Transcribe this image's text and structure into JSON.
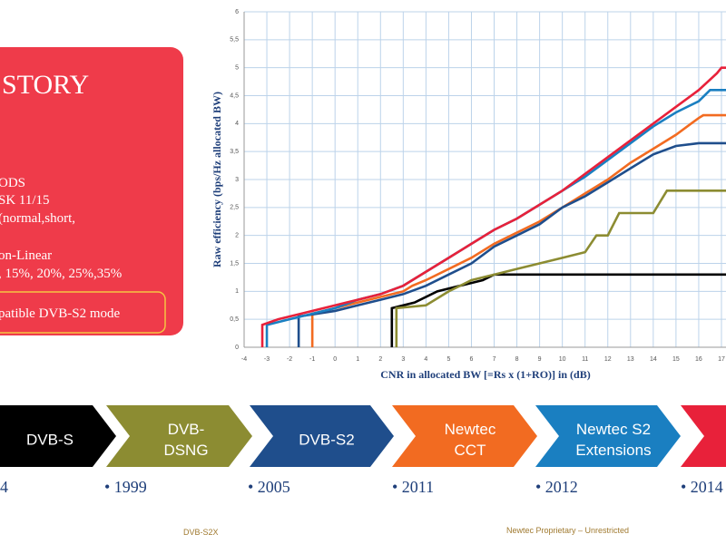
{
  "chart_data": {
    "type": "line",
    "y_label": "Raw efficiency (bps/Hz allocated BW)",
    "x_label": "CNR in allocated BW [=Rs x (1+RO)] in (dB)",
    "xlim": [
      -4,
      17.2
    ],
    "ylim": [
      0,
      6
    ],
    "xticks": [
      -4,
      -3,
      -2,
      -1,
      0,
      1,
      2,
      3,
      4,
      5,
      6,
      7,
      8,
      9,
      10,
      11,
      12,
      13,
      14,
      15,
      16,
      17
    ],
    "yticks": [
      0,
      {
        "value": 0.5,
        "label": "0,5"
      },
      1,
      {
        "value": 1.5,
        "label": "1,5"
      },
      2,
      {
        "value": 2.5,
        "label": "2,5"
      },
      3,
      {
        "value": 3.5,
        "label": "3,5"
      },
      4,
      {
        "value": 4.5,
        "label": "4,5"
      },
      5,
      {
        "value": 5.5,
        "label": "5,5"
      },
      6
    ],
    "grid": true,
    "series": [
      {
        "color": "#000000",
        "x": [
          2.5,
          2.5,
          3.5,
          4.5,
          5.5,
          6.5,
          7,
          17.2
        ],
        "values": [
          0,
          0.7,
          0.8,
          1.0,
          1.1,
          1.2,
          1.3,
          1.3
        ]
      },
      {
        "color": "#8c8c32",
        "x": [
          2.7,
          2.7,
          4,
          5,
          6,
          7,
          8,
          9,
          10,
          11,
          11.5,
          12,
          12.5,
          14,
          14.6,
          17.2
        ],
        "values": [
          0,
          0.7,
          0.75,
          1.0,
          1.2,
          1.3,
          1.4,
          1.5,
          1.6,
          1.7,
          2.0,
          2.0,
          2.4,
          2.4,
          2.8,
          2.8
        ]
      },
      {
        "color": "#f26b21",
        "x": [
          -1,
          -1,
          0,
          1,
          2,
          3,
          3.4,
          4,
          5,
          6,
          7,
          8,
          9,
          10,
          11,
          12,
          13,
          14,
          15,
          16,
          16.2,
          17.2
        ],
        "values": [
          0,
          0.6,
          0.7,
          0.8,
          0.9,
          1.0,
          1.1,
          1.2,
          1.4,
          1.6,
          1.85,
          2.05,
          2.25,
          2.5,
          2.75,
          3.0,
          3.3,
          3.55,
          3.8,
          4.1,
          4.15,
          4.15
        ]
      },
      {
        "color": "#1f4e8c",
        "x": [
          -1.6,
          -1.6,
          0,
          1,
          2,
          3,
          4,
          5,
          6,
          7,
          8,
          9,
          10,
          11,
          12,
          13,
          14,
          15,
          16,
          17.2
        ],
        "values": [
          0,
          0.55,
          0.65,
          0.75,
          0.85,
          0.95,
          1.1,
          1.3,
          1.5,
          1.8,
          2.0,
          2.2,
          2.5,
          2.7,
          2.95,
          3.2,
          3.45,
          3.6,
          3.65,
          3.65
        ]
      },
      {
        "color": "#1a7fc1",
        "x": [
          -3.0,
          -3.0,
          -2,
          -1,
          0,
          1,
          2,
          3,
          4,
          5,
          6,
          7,
          8,
          9,
          10,
          11,
          12,
          13,
          14,
          15,
          16,
          16.5,
          17.2
        ],
        "values": [
          0,
          0.4,
          0.5,
          0.6,
          0.7,
          0.85,
          0.95,
          1.1,
          1.35,
          1.6,
          1.85,
          2.1,
          2.3,
          2.55,
          2.8,
          3.05,
          3.35,
          3.65,
          3.95,
          4.2,
          4.4,
          4.6,
          4.6
        ]
      },
      {
        "color": "#e8213a",
        "x": [
          -3.2,
          -3.2,
          -2.5,
          -1.5,
          0,
          1,
          2,
          3,
          4,
          5,
          6,
          7,
          8,
          9,
          10,
          11,
          12,
          13,
          14,
          15,
          16,
          16.8,
          17,
          17.2
        ],
        "values": [
          0,
          0.4,
          0.5,
          0.6,
          0.75,
          0.85,
          0.95,
          1.1,
          1.35,
          1.6,
          1.85,
          2.1,
          2.3,
          2.55,
          2.8,
          3.1,
          3.4,
          3.7,
          4.0,
          4.3,
          4.6,
          4.9,
          5.0,
          5.0
        ]
      }
    ]
  },
  "slide": {
    "box_title": "STORY",
    "box_lines": [
      "ODS",
      "SK 11/15",
      "(normal,short,",
      "on-Linear",
      ", 15%, 20%, 25%,35%"
    ],
    "box_note": "patible DVB-S2 mode",
    "timeline": [
      {
        "label": [
          "DVB-S"
        ],
        "year": "4"
      },
      {
        "label": [
          "DVB-",
          "DSNG"
        ],
        "year": "• 1999"
      },
      {
        "label": [
          "DVB-S2"
        ],
        "year": "• 2005"
      },
      {
        "label": [
          "Newtec",
          "CCT"
        ],
        "year": "• 2011"
      },
      {
        "label": [
          "Newtec S2",
          "Extensions"
        ],
        "year": "• 2012"
      },
      {
        "label": [],
        "year": "• 2014"
      }
    ],
    "footer_left": "DVB-S2X",
    "footer_right": "Newtec Proprietary – Unrestricted"
  }
}
